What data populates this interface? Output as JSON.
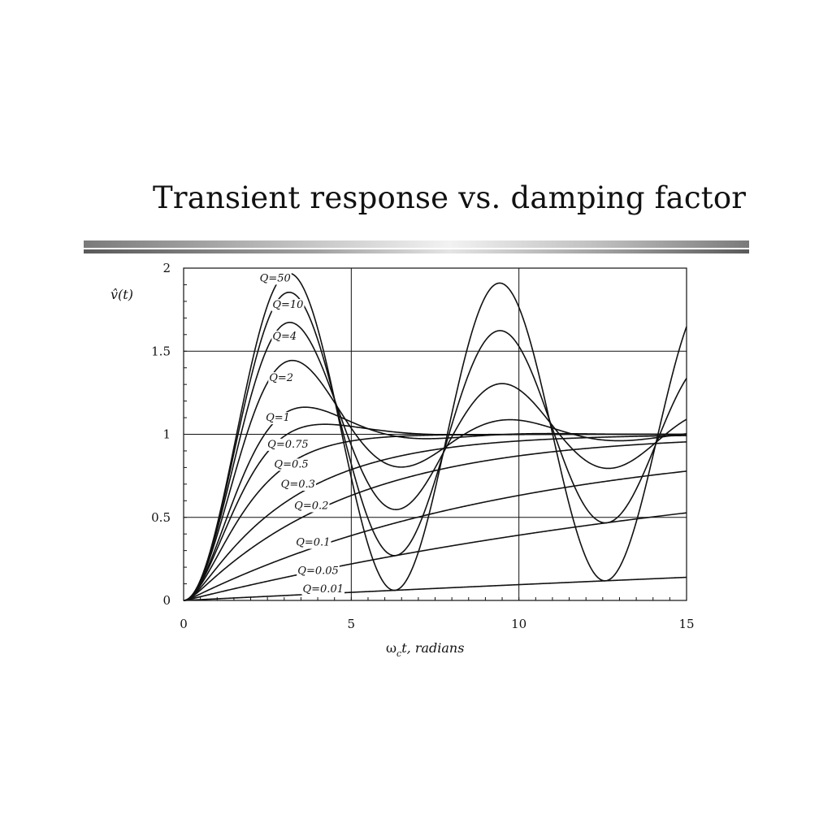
{
  "slide": {
    "title": "Transient response vs. damping factor"
  },
  "chart_data": {
    "type": "line",
    "title": "",
    "xlabel_main": "ω",
    "xlabel_sub": "c",
    "xlabel_rest": "t, radians",
    "ylabel": "v̂(t)",
    "xlim": [
      0,
      15
    ],
    "ylim": [
      0,
      2
    ],
    "xticks": [
      "0",
      "5",
      "10",
      "15"
    ],
    "yticks": [
      "0",
      "0.5",
      "1",
      "1.5",
      "2"
    ],
    "grid": true,
    "series": [
      {
        "name": "Q=50",
        "Q": 50,
        "label_x": 2.27,
        "label_y": 1.92
      },
      {
        "name": "Q=10",
        "Q": 10,
        "label_x": 2.65,
        "label_y": 1.76
      },
      {
        "name": "Q=4",
        "Q": 4,
        "label_x": 2.65,
        "label_y": 1.57
      },
      {
        "name": "Q=2",
        "Q": 2,
        "label_x": 2.55,
        "label_y": 1.32
      },
      {
        "name": "Q=1",
        "Q": 1,
        "label_x": 2.45,
        "label_y": 1.08
      },
      {
        "name": "Q=0.75",
        "Q": 0.75,
        "label_x": 2.5,
        "label_y": 0.92
      },
      {
        "name": "Q=0.5",
        "Q": 0.5,
        "label_x": 2.7,
        "label_y": 0.8
      },
      {
        "name": "Q=0.3",
        "Q": 0.3,
        "label_x": 2.9,
        "label_y": 0.68
      },
      {
        "name": "Q=0.2",
        "Q": 0.2,
        "label_x": 3.3,
        "label_y": 0.55
      },
      {
        "name": "Q=0.1",
        "Q": 0.1,
        "label_x": 3.35,
        "label_y": 0.33
      },
      {
        "name": "Q=0.05",
        "Q": 0.05,
        "label_x": 3.4,
        "label_y": 0.16
      },
      {
        "name": "Q=0.01",
        "Q": 0.01,
        "label_x": 3.55,
        "label_y": 0.05
      }
    ]
  }
}
